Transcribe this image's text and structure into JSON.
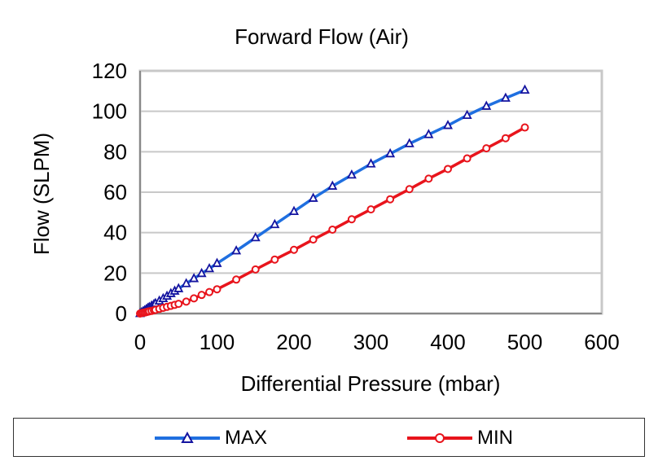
{
  "chart_data": {
    "type": "line",
    "title": "Forward Flow (Air)",
    "xlabel": "Differential Pressure (mbar)",
    "ylabel": "Flow (SLPM)",
    "xlim": [
      0,
      600
    ],
    "ylim": [
      0,
      120
    ],
    "x_ticks": [
      0,
      100,
      200,
      300,
      400,
      500,
      600
    ],
    "y_ticks": [
      0,
      20,
      40,
      60,
      80,
      100,
      120
    ],
    "grid": "horizontal",
    "legend_position": "bottom",
    "series": [
      {
        "name": "MAX",
        "color": "#1F6FE0",
        "marker": "triangle",
        "x": [
          0,
          2,
          4,
          6,
          8,
          10,
          12,
          15,
          18,
          20,
          25,
          30,
          35,
          40,
          45,
          50,
          60,
          70,
          80,
          90,
          100,
          125,
          150,
          175,
          200,
          225,
          250,
          275,
          300,
          325,
          350,
          375,
          400,
          425,
          450,
          475,
          500
        ],
        "y": [
          0,
          0.5,
          1.0,
          1.5,
          2.0,
          2.6,
          3.1,
          3.8,
          4.5,
          5.0,
          6.2,
          7.4,
          8.6,
          9.9,
          11.1,
          12.3,
          14.8,
          17.3,
          19.8,
          22.2,
          24.8,
          31.0,
          37.5,
          44.0,
          50.5,
          57.0,
          63.0,
          68.5,
          74.0,
          79.0,
          84.0,
          88.5,
          93.0,
          98.0,
          102.5,
          106.5,
          110.5
        ]
      },
      {
        "name": "MIN",
        "color": "#E8141C",
        "marker": "circle",
        "x": [
          0,
          2,
          4,
          6,
          8,
          10,
          12,
          15,
          18,
          20,
          25,
          30,
          35,
          40,
          45,
          50,
          60,
          70,
          80,
          90,
          100,
          125,
          150,
          175,
          200,
          225,
          250,
          275,
          300,
          325,
          350,
          375,
          400,
          425,
          450,
          475,
          500
        ],
        "y": [
          0,
          0.2,
          0.4,
          0.5,
          0.7,
          0.9,
          1.1,
          1.3,
          1.6,
          1.8,
          2.3,
          2.8,
          3.3,
          3.8,
          4.3,
          4.8,
          5.9,
          7.5,
          9.2,
          10.6,
          12.0,
          16.8,
          21.8,
          26.7,
          31.5,
          36.6,
          41.5,
          46.6,
          51.5,
          56.5,
          61.5,
          66.7,
          71.5,
          76.7,
          81.7,
          86.7,
          92.0
        ]
      }
    ]
  }
}
